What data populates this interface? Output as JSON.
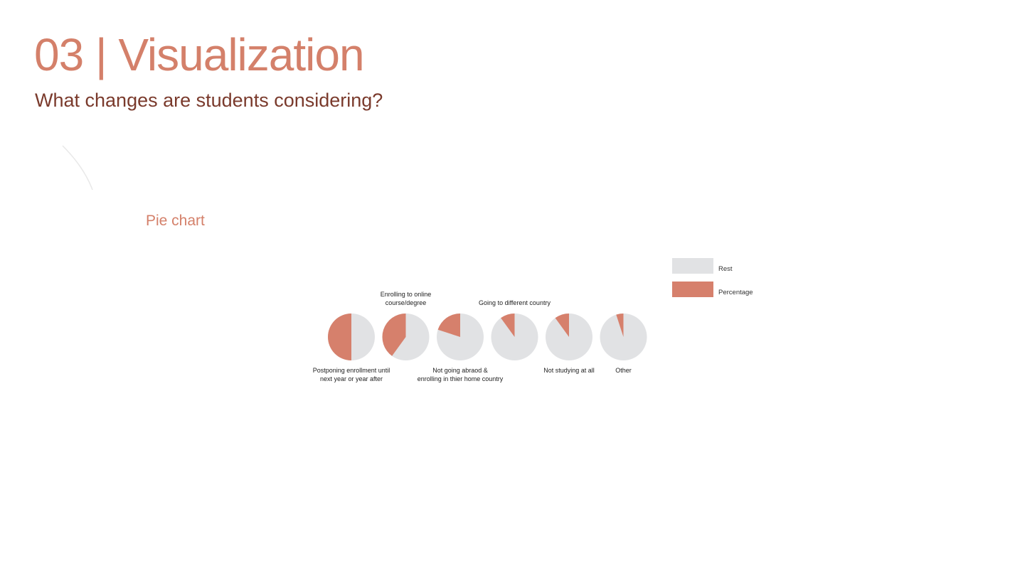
{
  "header": {
    "title": "03 | Visualization",
    "subtitle": "What changes are students considering?"
  },
  "section": {
    "label": "Pie chart"
  },
  "colors": {
    "rest": "#e1e2e4",
    "percentage": "#d6806c",
    "accent": "#d4806a",
    "subtitle": "#7a3a2c"
  },
  "legend": {
    "rest_label": "Rest",
    "percentage_label": "Percentage"
  },
  "chart_data": {
    "type": "pie",
    "title": "",
    "legend_position": "top-right",
    "series_labels": [
      "Rest",
      "Percentage"
    ],
    "pies": [
      {
        "label": "Postponing enrollment until\nnext year or year after",
        "percentage": 50,
        "label_position": "below"
      },
      {
        "label": "Enrolling to online\ncourse/degree",
        "percentage": 40,
        "label_position": "above"
      },
      {
        "label": "Not going abraod &\nenrolling in thier home country",
        "percentage": 20,
        "label_position": "below"
      },
      {
        "label": "Going to different country",
        "percentage": 10,
        "label_position": "above"
      },
      {
        "label": "Not studying at all",
        "percentage": 10,
        "label_position": "below"
      },
      {
        "label": "Other",
        "percentage": 5,
        "label_position": "below"
      }
    ]
  }
}
